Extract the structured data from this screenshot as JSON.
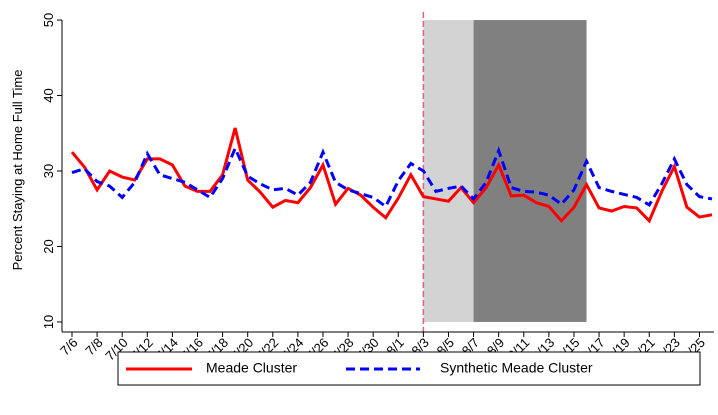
{
  "chart_data": {
    "type": "line",
    "y_label": "Percent Staying at Home Full Time",
    "categories": [
      "7/6",
      null,
      "7/8",
      null,
      "7/10",
      null,
      "7/12",
      null,
      "7/14",
      null,
      "7/16",
      null,
      "7/18",
      null,
      "7/20",
      null,
      "7/22",
      null,
      "7/24",
      null,
      "7/26",
      null,
      "7/28",
      null,
      "7/30",
      null,
      "8/1",
      null,
      "8/3",
      null,
      "8/5",
      null,
      "8/7",
      null,
      "8/9",
      null,
      "8/11",
      null,
      "8/13",
      null,
      "8/15",
      null,
      "8/17",
      null,
      "8/19",
      null,
      "8/21",
      null,
      "8/23",
      null,
      "8/25",
      null
    ],
    "series": [
      {
        "name": "Meade Cluster",
        "color": "#ff0000",
        "dash": false,
        "values": [
          32.5,
          30.5,
          27.5,
          30,
          29.2,
          28.8,
          31.6,
          31.6,
          30.8,
          28,
          27.3,
          27.3,
          29.5,
          35.7,
          28.8,
          27.2,
          25.2,
          26.1,
          25.8,
          27.8,
          30.8,
          25.6,
          27.7,
          26.8,
          25.2,
          23.8,
          26.4,
          29.5,
          26.6,
          26.3,
          26,
          27.8,
          25.8,
          27.8,
          30.8,
          26.7,
          26.8,
          25.8,
          25.3,
          23.4,
          25.2,
          28.2,
          25.1,
          24.7,
          25.3,
          25.1,
          23.4,
          27.3,
          30.6,
          25.2,
          23.9,
          24.2
        ]
      },
      {
        "name": "Synthetic Meade Cluster",
        "color": "#0000ff",
        "dash": true,
        "values": [
          29.8,
          30.3,
          28.6,
          28,
          26.5,
          28.5,
          32.3,
          29.5,
          29,
          28.5,
          27.5,
          26.5,
          29,
          33,
          29.3,
          28.3,
          27.5,
          27.7,
          26.8,
          28.5,
          32.5,
          28.5,
          27.5,
          27,
          26.5,
          25.3,
          28.7,
          31,
          30,
          27.3,
          27.7,
          28,
          26.3,
          28.5,
          32.7,
          27.8,
          27.3,
          27.2,
          26.8,
          25.6,
          27.5,
          31.3,
          27.8,
          27.3,
          26.9,
          26.5,
          25.5,
          28.3,
          31.6,
          28.2,
          26.6,
          26.3
        ]
      }
    ],
    "ylim": [
      9,
      51
    ],
    "yticks": [
      10,
      20,
      30,
      40,
      50
    ],
    "spans": [
      {
        "start": 28,
        "end": 32,
        "y": [
          10,
          50
        ],
        "color": "#d3d3d3"
      },
      {
        "start": 32,
        "end": 41,
        "y": [
          10,
          50
        ],
        "color": "#808080"
      }
    ],
    "vline": {
      "at": 28,
      "color": "#e0607e"
    }
  }
}
